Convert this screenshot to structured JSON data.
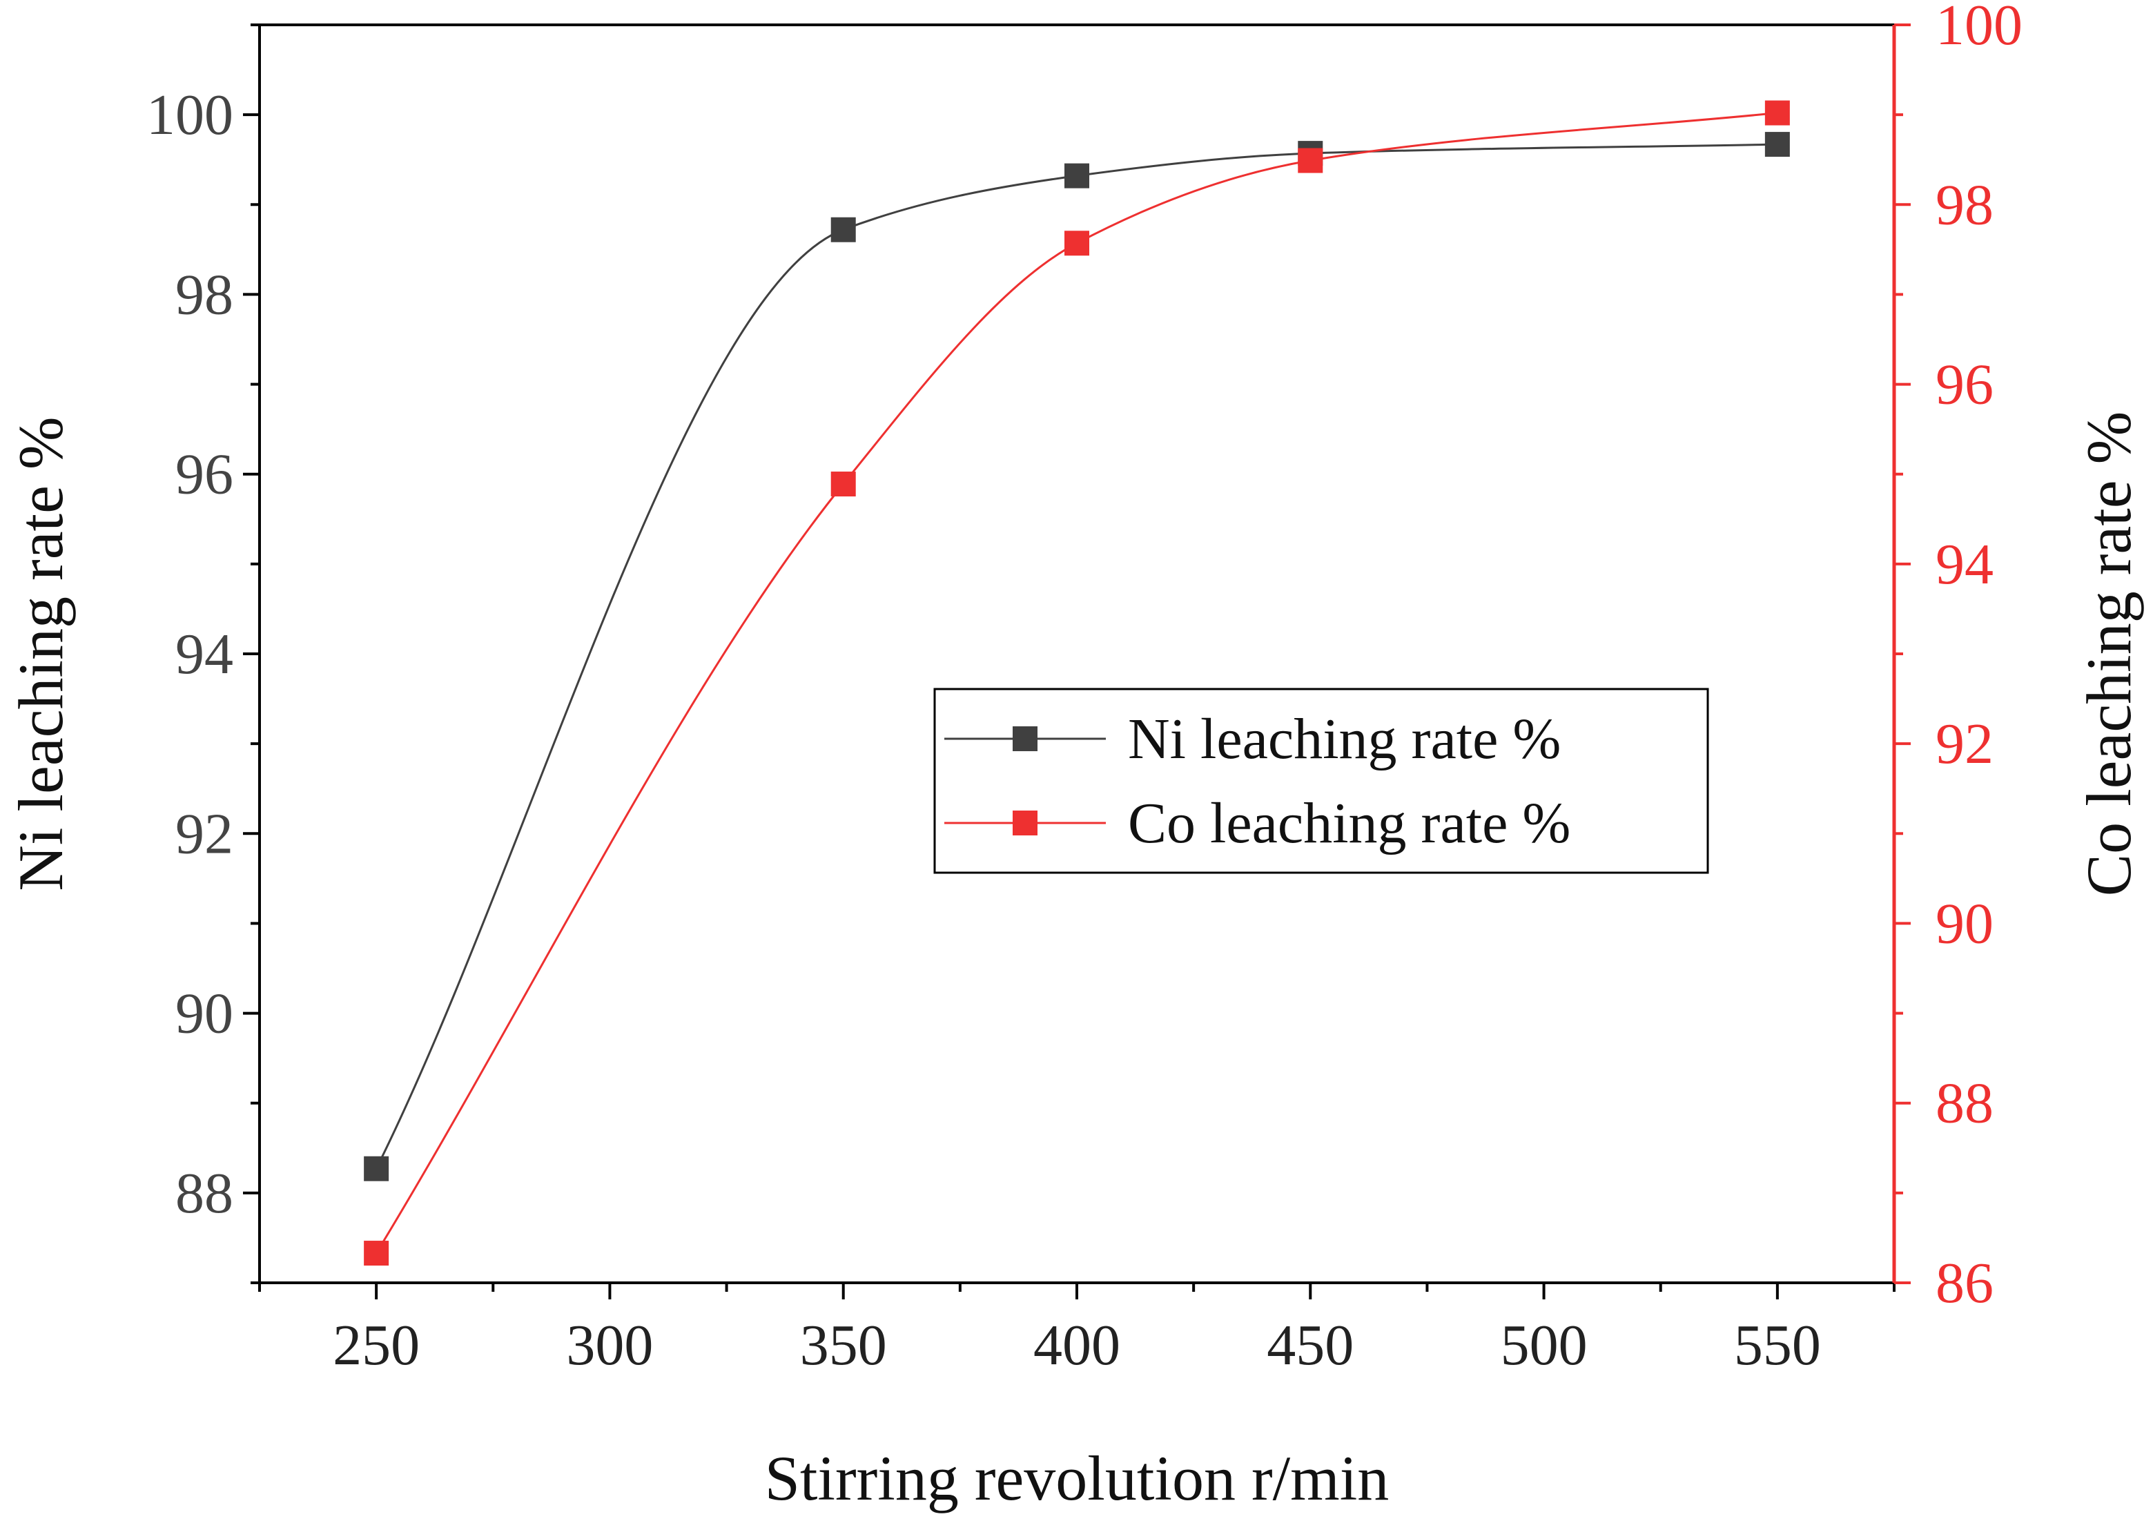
{
  "chart_data": {
    "type": "line",
    "title": "",
    "xlabel": "Stirring revolution r/min",
    "ylabel": "Ni leaching rate %",
    "y2label": "Co leaching rate %",
    "xlim": [
      225,
      575
    ],
    "ylim": [
      87,
      101
    ],
    "y2lim": [
      86,
      100
    ],
    "x_ticks": [
      250,
      300,
      350,
      400,
      450,
      500,
      550
    ],
    "y_ticks": [
      88,
      90,
      92,
      94,
      96,
      98,
      100
    ],
    "y2_ticks": [
      86,
      88,
      90,
      92,
      94,
      96,
      98,
      100
    ],
    "legend_position": "center-right",
    "grid": false,
    "series": [
      {
        "name": "Ni leaching rate %",
        "axis": "left",
        "color": "#404040",
        "marker": "square",
        "x": [
          250,
          350,
          400,
          450,
          550
        ],
        "values": [
          88.27,
          98.72,
          99.32,
          99.57,
          99.67
        ]
      },
      {
        "name": "Co leaching rate %",
        "axis": "right",
        "color": "#ee3030",
        "marker": "square",
        "x": [
          250,
          350,
          400,
          450,
          550
        ],
        "values": [
          86.33,
          94.89,
          97.57,
          98.49,
          99.02
        ]
      }
    ]
  }
}
